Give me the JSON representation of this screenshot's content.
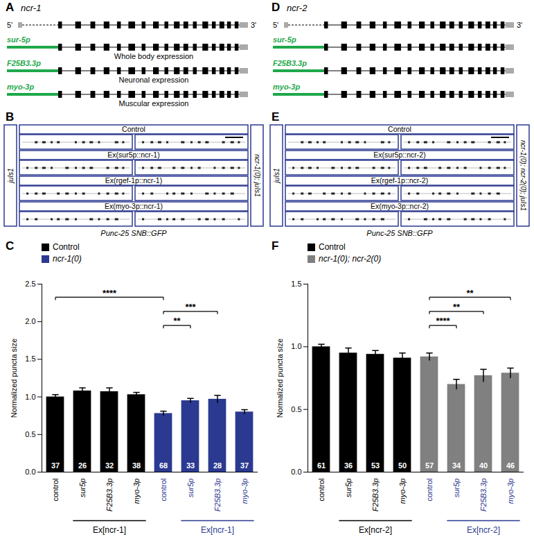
{
  "figure": {
    "A": {
      "panel": "A",
      "gene": "ncr-1",
      "five_prime": "5'",
      "three_prime": "3'",
      "constructs": [
        {
          "promoter": "sur-5p",
          "expression": "Whole body expression"
        },
        {
          "promoter": "F25B3.3p",
          "expression": "Neuronal expression"
        },
        {
          "promoter": "myo-3p",
          "expression": "Muscular expression"
        }
      ]
    },
    "B": {
      "panel": "B",
      "left_label": "juIs1",
      "right_label": "ncr-1(0); juIs1",
      "rows": [
        "Control",
        "Ex(sur5p::ncr-1)",
        "Ex(rgef-1p::ncr-1)",
        "Ex(myo-3p::ncr-1)"
      ],
      "caption": "Punc-25 SNB::GFP"
    },
    "D": {
      "panel": "D",
      "gene": "ncr-2",
      "five_prime": "5'",
      "three_prime": "3'",
      "constructs": [
        {
          "promoter": "sur-5p"
        },
        {
          "promoter": "F25B3.3p"
        },
        {
          "promoter": "myo-3p"
        }
      ]
    },
    "E": {
      "panel": "E",
      "left_label": "juIs1",
      "right_label": "ncr-1(0); ncr-2(0); juIs1",
      "rows": [
        "Control",
        "Ex(sur5p::ncr-2)",
        "Ex(rgef-1p::ncr-2)",
        "Ex(myo-3p::ncr-2)"
      ],
      "caption": "Punc-25 SNB::GFP"
    }
  },
  "chart_data": [
    {
      "panel": "C",
      "type": "bar",
      "ylabel": "Normalized puncta size",
      "categories": [
        "control",
        "sur5p",
        "F25B3.3p",
        "myo-3p",
        "control",
        "sur5p",
        "F25B3.3p",
        "myo-3p"
      ],
      "values": [
        1.0,
        1.08,
        1.07,
        1.03,
        0.78,
        0.95,
        0.97,
        0.8
      ],
      "errors": [
        0.03,
        0.04,
        0.05,
        0.03,
        0.03,
        0.03,
        0.05,
        0.03
      ],
      "n": [
        37,
        26,
        32,
        38,
        68,
        33,
        28,
        37
      ],
      "colors": [
        "#000000",
        "#000000",
        "#000000",
        "#000000",
        "#2b3990",
        "#2b3990",
        "#2b3990",
        "#2b3990"
      ],
      "series": [
        {
          "name": "Control",
          "color": "#000000"
        },
        {
          "name": "ncr-1(0)",
          "color": "#2b3990"
        }
      ],
      "groups": [
        {
          "label": "Ex[ncr-1]",
          "first": 1,
          "last": 3
        },
        {
          "label": "Ex[ncr-1]",
          "first": 5,
          "last": 7
        }
      ],
      "significance": [
        {
          "from": 0,
          "to": 4,
          "label": "****"
        },
        {
          "from": 4,
          "to": 6,
          "label": "***"
        },
        {
          "from": 4,
          "to": 5,
          "label": "**"
        }
      ],
      "ylim": [
        0,
        2.5
      ],
      "yticks": [
        {
          "value": 0,
          "label": "0.0"
        },
        0.5,
        {
          "value": 1,
          "label": "1.0"
        },
        1.5,
        {
          "value": 2,
          "label": "2.0"
        },
        2.5
      ],
      "legend": "top-left"
    },
    {
      "panel": "F",
      "type": "bar",
      "ylabel": "Normalized puncta size",
      "categories": [
        "control",
        "sur5p",
        "F25B3.3p",
        "myo-3p",
        "control",
        "sur5p",
        "F25B3.3p",
        "myo-3p"
      ],
      "values": [
        1.0,
        0.95,
        0.94,
        0.91,
        0.92,
        0.7,
        0.77,
        0.79
      ],
      "errors": [
        0.02,
        0.04,
        0.03,
        0.04,
        0.03,
        0.04,
        0.05,
        0.04
      ],
      "n": [
        61,
        36,
        53,
        50,
        57,
        34,
        40,
        46
      ],
      "colors": [
        "#000000",
        "#000000",
        "#000000",
        "#000000",
        "#808080",
        "#808080",
        "#808080",
        "#808080"
      ],
      "series": [
        {
          "name": "Control",
          "color": "#000000"
        },
        {
          "name": "ncr-1(0); ncr-2(0)",
          "color": "#808080"
        }
      ],
      "groups": [
        {
          "label": "Ex[ncr-2]",
          "first": 1,
          "last": 3
        },
        {
          "label": "Ex[ncr-2]",
          "first": 5,
          "last": 7
        }
      ],
      "significance": [
        {
          "from": 4,
          "to": 7,
          "label": "**"
        },
        {
          "from": 4,
          "to": 6,
          "label": "**"
        },
        {
          "from": 4,
          "to": 5,
          "label": "****"
        }
      ],
      "ylim": [
        0,
        1.5
      ],
      "yticks": [
        {
          "value": 0,
          "label": "0.0"
        },
        0.5,
        {
          "value": 1,
          "label": "1.0"
        },
        1.5
      ],
      "legend": "top-left"
    }
  ]
}
